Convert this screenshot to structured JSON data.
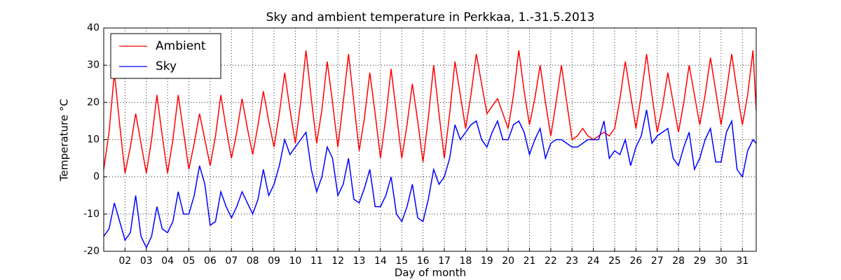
{
  "chart_data": {
    "type": "line",
    "title": "Sky and ambient temperature in Perkkaa, 1.-31.5.2013",
    "xlabel": "Day of month",
    "ylabel": "Temperature °C",
    "x": [
      1,
      1.25,
      1.5,
      1.75,
      2,
      2.25,
      2.5,
      2.75,
      3,
      3.25,
      3.5,
      3.75,
      4,
      4.25,
      4.5,
      4.75,
      5,
      5.25,
      5.5,
      5.75,
      6,
      6.25,
      6.5,
      6.75,
      7,
      7.25,
      7.5,
      7.75,
      8,
      8.25,
      8.5,
      8.75,
      9,
      9.25,
      9.5,
      9.75,
      10,
      10.25,
      10.5,
      10.75,
      11,
      11.25,
      11.5,
      11.75,
      12,
      12.25,
      12.5,
      12.75,
      13,
      13.25,
      13.5,
      13.75,
      14,
      14.25,
      14.5,
      14.75,
      15,
      15.25,
      15.5,
      15.75,
      16,
      16.25,
      16.5,
      16.75,
      17,
      17.25,
      17.5,
      17.75,
      18,
      18.25,
      18.5,
      18.75,
      19,
      19.25,
      19.5,
      19.75,
      20,
      20.25,
      20.5,
      20.75,
      21,
      21.25,
      21.5,
      21.75,
      22,
      22.25,
      22.5,
      22.75,
      23,
      23.25,
      23.5,
      23.75,
      24,
      24.25,
      24.5,
      24.75,
      25,
      25.25,
      25.5,
      25.75,
      26,
      26.25,
      26.5,
      26.75,
      27,
      27.25,
      27.5,
      27.75,
      28,
      28.25,
      28.5,
      28.75,
      29,
      29.25,
      29.5,
      29.75,
      30,
      30.25,
      30.5,
      30.75,
      31,
      31.25,
      31.5,
      31.65
    ],
    "series": [
      {
        "name": "Ambient",
        "color": "#ff0000",
        "values": [
          2,
          12,
          28,
          14,
          1,
          8,
          17,
          9,
          1,
          10,
          22,
          11,
          1,
          10,
          22,
          12,
          2,
          9,
          17,
          10,
          3,
          11,
          22,
          13,
          5,
          12,
          21,
          13,
          6,
          14,
          23,
          15,
          8,
          17,
          28,
          18,
          9,
          20,
          34,
          21,
          9,
          18,
          31,
          20,
          8,
          20,
          33,
          20,
          7,
          16,
          28,
          17,
          5,
          16,
          29,
          17,
          5,
          14,
          25,
          15,
          4,
          16,
          30,
          17,
          5,
          17,
          31,
          22,
          13,
          22,
          33,
          25,
          17,
          19,
          21,
          17,
          13,
          22,
          34,
          23,
          14,
          21,
          30,
          20,
          11,
          20,
          30,
          20,
          10,
          11,
          13,
          11,
          10,
          11,
          12,
          11,
          13,
          21,
          31,
          22,
          13,
          22,
          33,
          22,
          12,
          19,
          28,
          20,
          12,
          20,
          30,
          22,
          14,
          22,
          32,
          23,
          14,
          23,
          33,
          23,
          14,
          22,
          34,
          18
        ]
      },
      {
        "name": "Sky",
        "color": "#0000ff",
        "values": [
          -16,
          -14,
          -7,
          -12,
          -17,
          -15,
          -5,
          -16,
          -19,
          -16,
          -8,
          -14,
          -15,
          -12,
          -4,
          -10,
          -10,
          -5,
          3,
          -2,
          -13,
          -12,
          -4,
          -8,
          -11,
          -8,
          -4,
          -7,
          -10,
          -6,
          2,
          -5,
          -2,
          3,
          10,
          6,
          8,
          10,
          12,
          2,
          -4,
          0,
          8,
          5,
          -5,
          -2,
          5,
          -6,
          -7,
          -3,
          2,
          -8,
          -8,
          -5,
          0,
          -10,
          -12,
          -8,
          -2,
          -11,
          -12,
          -6,
          2,
          -2,
          0,
          5,
          14,
          10,
          12,
          14,
          15,
          10,
          8,
          12,
          15,
          10,
          10,
          14,
          15,
          12,
          6,
          10,
          13,
          5,
          9,
          10,
          10,
          9,
          8,
          8,
          9,
          10,
          10,
          10,
          15,
          5,
          7,
          6,
          10,
          3,
          8,
          11,
          18,
          9,
          11,
          12,
          13,
          5,
          3,
          8,
          12,
          2,
          5,
          10,
          13,
          4,
          4,
          12,
          15,
          2,
          0,
          7,
          10,
          9
        ]
      }
    ],
    "xlim": [
      1,
      31.65
    ],
    "ylim": [
      -20,
      40
    ],
    "xticks": [
      {
        "value": 2,
        "label": "02"
      },
      {
        "value": 3,
        "label": "03"
      },
      {
        "value": 4,
        "label": "04"
      },
      {
        "value": 5,
        "label": "05"
      },
      {
        "value": 6,
        "label": "06"
      },
      {
        "value": 7,
        "label": "07"
      },
      {
        "value": 8,
        "label": "08"
      },
      {
        "value": 9,
        "label": "09"
      },
      10,
      11,
      12,
      13,
      14,
      15,
      16,
      17,
      18,
      19,
      20,
      21,
      22,
      23,
      24,
      25,
      26,
      27,
      28,
      29,
      30,
      31
    ],
    "yticks": [
      -20,
      -10,
      0,
      10,
      20,
      30,
      40
    ],
    "grid": true,
    "legend": "upper left"
  }
}
